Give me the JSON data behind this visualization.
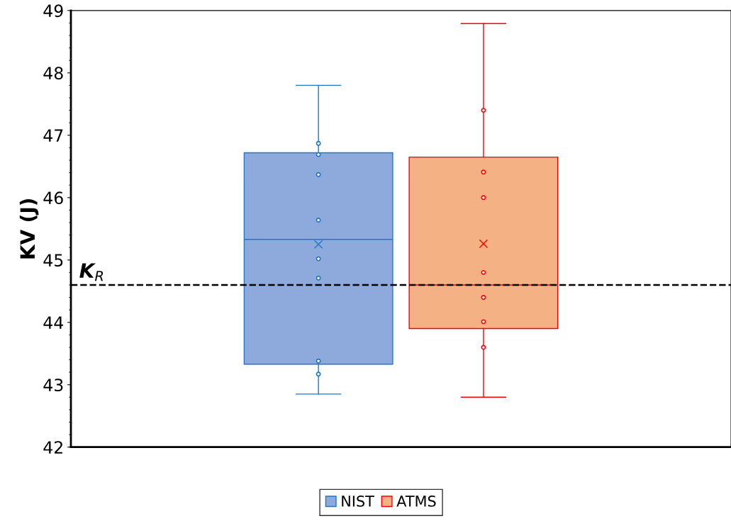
{
  "chart_data": {
    "type": "box",
    "ylabel": "KV (J)",
    "categories": [
      null,
      null
    ],
    "tick_labels": "y",
    "ylim": [
      42,
      49
    ],
    "yticks": [
      42,
      43,
      44,
      45,
      46,
      47,
      48,
      49
    ],
    "grid": false,
    "legend": "bottom",
    "series": [
      {
        "name": "NIST",
        "color": "#1f77c8",
        "colors": [
          "#8eaadc",
          null
        ],
        "boxes": [
          {
            "low": 42.85,
            "q1": 43.33,
            "median": 45.33,
            "q3": 46.72,
            "high": 47.8,
            "mean": 45.25
          },
          null
        ]
      },
      {
        "name": "ATMS",
        "color": "#ff0000",
        "colors": [
          null,
          "#f4b183"
        ],
        "boxes": [
          null,
          {
            "low": 42.8,
            "q1": 43.9,
            "median": 44.6,
            "q3": 46.65,
            "high": 48.79,
            "mean": 45.26
          }
        ]
      },
      {
        "type": "scatter",
        "color": "#1f77c8",
        "values": [
          46.87,
          null
        ]
      },
      {
        "type": "scatter",
        "color": "#1f77c8",
        "values": [
          46.69,
          null
        ]
      },
      {
        "type": "scatter",
        "color": "#1f77c8",
        "values": [
          46.37,
          null
        ]
      },
      {
        "type": "scatter",
        "color": "#1f77c8",
        "values": [
          45.64,
          null
        ]
      },
      {
        "type": "scatter",
        "color": "#1f77c8",
        "values": [
          45.02,
          null
        ]
      },
      {
        "type": "scatter",
        "color": "#1f77c8",
        "values": [
          44.71,
          null
        ]
      },
      {
        "type": "scatter",
        "color": "#1f77c8",
        "values": [
          43.38,
          null
        ]
      },
      {
        "type": "scatter",
        "color": "#1f77c8",
        "values": [
          43.17,
          null
        ]
      },
      {
        "type": "scatter",
        "color": "#ff0000",
        "values": [
          null,
          47.4
        ]
      },
      {
        "type": "scatter",
        "color": "#ff0000",
        "values": [
          null,
          46.41
        ]
      },
      {
        "type": "scatter",
        "color": "#ff0000",
        "values": [
          null,
          46.0
        ]
      },
      {
        "type": "scatter",
        "color": "#ff0000",
        "values": [
          null,
          44.8
        ]
      },
      {
        "type": "scatter",
        "color": "#ff0000",
        "values": [
          null,
          44.4
        ]
      },
      {
        "type": "scatter",
        "color": "#ff0000",
        "values": [
          null,
          44.01
        ]
      },
      {
        "type": "scatter",
        "color": "#ff0000",
        "values": [
          null,
          43.6
        ]
      }
    ],
    "ref_lines": [
      {
        "axis": "y",
        "value": 44.6,
        "label": "K$_{R}$",
        "color": "#000000",
        "line_style": "dashed"
      }
    ]
  }
}
